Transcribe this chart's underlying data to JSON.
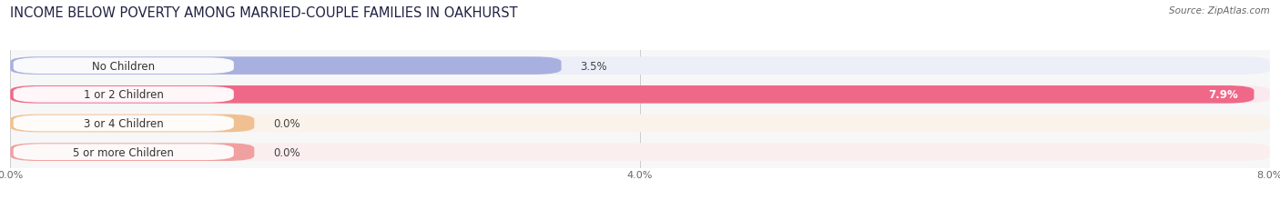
{
  "title": "INCOME BELOW POVERTY AMONG MARRIED-COUPLE FAMILIES IN OAKHURST",
  "source": "Source: ZipAtlas.com",
  "categories": [
    "No Children",
    "1 or 2 Children",
    "3 or 4 Children",
    "5 or more Children"
  ],
  "values": [
    3.5,
    7.9,
    0.0,
    0.0
  ],
  "bar_colors": [
    "#a8b0e0",
    "#f06888",
    "#f0c090",
    "#f0a0a0"
  ],
  "bar_bg_colors": [
    "#eceef8",
    "#faeaf0",
    "#faf3ec",
    "#faeeee"
  ],
  "xlim": [
    0,
    8.0
  ],
  "xticks": [
    0.0,
    4.0,
    8.0
  ],
  "xtick_labels": [
    "0.0%",
    "4.0%",
    "8.0%"
  ],
  "title_fontsize": 10.5,
  "label_fontsize": 8.5,
  "value_fontsize": 8.5,
  "background_color": "#ffffff",
  "plot_bg_color": "#f7f7f7"
}
